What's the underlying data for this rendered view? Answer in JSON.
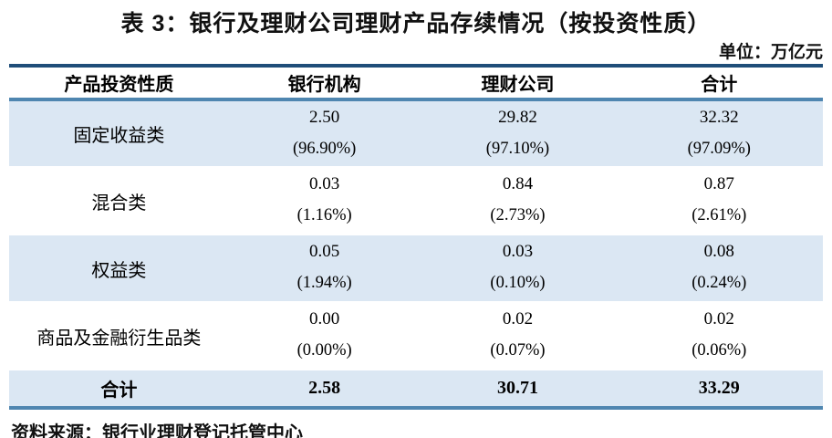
{
  "page": {
    "title": "表 3：银行及理财公司理财产品存续情况（按投资性质）",
    "unit_label": "单位：万亿元",
    "source": "资料来源：银行业理财登记托管中心"
  },
  "table": {
    "headers": [
      "产品投资性质",
      "银行机构",
      "理财公司",
      "合计"
    ],
    "rows": [
      {
        "label": "固定收益类",
        "cells": [
          {
            "value": "2.50",
            "pct": "(96.90%)"
          },
          {
            "value": "29.82",
            "pct": "(97.10%)"
          },
          {
            "value": "32.32",
            "pct": "(97.09%)"
          }
        ]
      },
      {
        "label": "混合类",
        "cells": [
          {
            "value": "0.03",
            "pct": "(1.16%)"
          },
          {
            "value": "0.84",
            "pct": "(2.73%)"
          },
          {
            "value": "0.87",
            "pct": "(2.61%)"
          }
        ]
      },
      {
        "label": "权益类",
        "cells": [
          {
            "value": "0.05",
            "pct": "(1.94%)"
          },
          {
            "value": "0.03",
            "pct": "(0.10%)"
          },
          {
            "value": "0.08",
            "pct": "(0.24%)"
          }
        ]
      },
      {
        "label": "商品及金融衍生品类",
        "cells": [
          {
            "value": "0.00",
            "pct": "(0.00%)"
          },
          {
            "value": "0.02",
            "pct": "(0.07%)"
          },
          {
            "value": "0.02",
            "pct": "(0.06%)"
          }
        ]
      }
    ],
    "total": {
      "label": "合计",
      "values": [
        "2.58",
        "30.71",
        "33.29"
      ]
    }
  },
  "colors": {
    "top_border": "#1f4e79",
    "accent_border": "#4f86b0",
    "stripe": "#dbe7f3"
  }
}
